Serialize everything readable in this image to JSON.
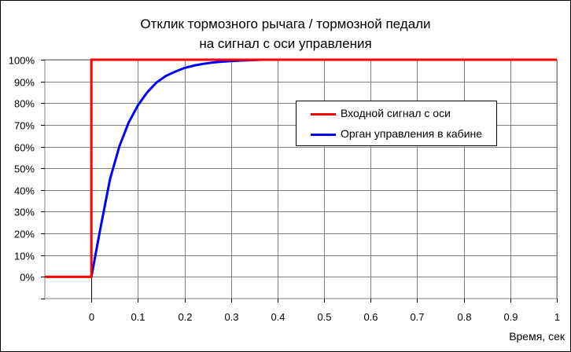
{
  "chart_data": {
    "type": "line",
    "title": "Отклик тормозного рычага / тормозной педали",
    "subtitle": "на сигнал с оси управления",
    "xlabel": "Время, сек",
    "ylabel": "",
    "xlim": [
      -0.1,
      1.0
    ],
    "ylim": [
      -0.1,
      1.0
    ],
    "grid": true,
    "legend_position": "upper-right",
    "x_ticks": [
      "0",
      "0.1",
      "0.2",
      "0.3",
      "0.4",
      "0.5",
      "0.6",
      "0.7",
      "0.8",
      "0.9",
      "1"
    ],
    "y_ticks": [
      "0%",
      "10%",
      "20%",
      "30%",
      "40%",
      "50%",
      "60%",
      "70%",
      "80%",
      "90%",
      "100%"
    ],
    "series": [
      {
        "name": "Входной сигнал с оси",
        "color": "#ff0000",
        "x": [
          -0.1,
          0.0,
          0.0,
          1.0
        ],
        "y": [
          0.0,
          0.0,
          1.0,
          1.0
        ]
      },
      {
        "name": "Орган управления в кабине",
        "color": "#0000ff",
        "x": [
          0.0,
          0.02,
          0.04,
          0.06,
          0.08,
          0.1,
          0.12,
          0.14,
          0.16,
          0.18,
          0.2,
          0.22,
          0.24,
          0.26,
          0.28,
          0.3,
          0.32,
          0.34,
          0.37,
          0.4,
          1.0
        ],
        "y": [
          0.0,
          0.23,
          0.45,
          0.6,
          0.71,
          0.79,
          0.85,
          0.895,
          0.925,
          0.945,
          0.962,
          0.973,
          0.981,
          0.987,
          0.991,
          0.994,
          0.996,
          0.998,
          1.0,
          1.0,
          1.0
        ]
      }
    ]
  }
}
